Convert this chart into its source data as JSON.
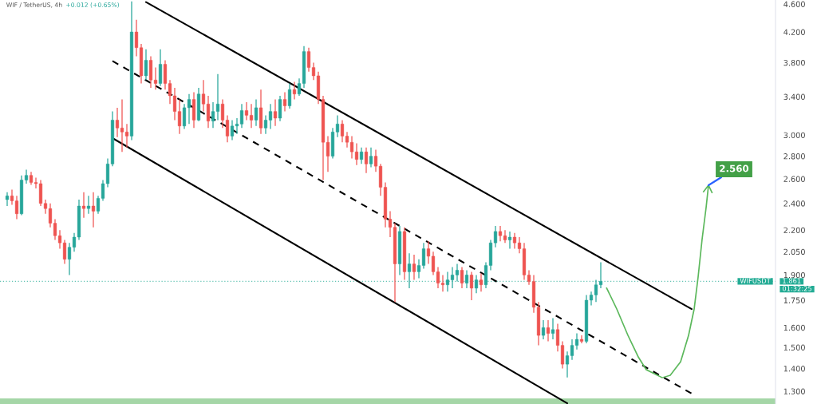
{
  "chart_data": {
    "type": "candlestick",
    "title": "WIF / TetherUS, 4h",
    "subtitle": "+0.012 (+0.65%)",
    "categories": [
      null,
      null,
      null,
      null,
      null,
      null,
      null,
      null,
      null,
      null,
      null,
      null,
      null,
      null,
      null,
      null,
      null,
      null,
      null,
      null,
      null,
      null,
      null,
      null,
      null,
      null,
      null,
      null,
      null,
      null,
      null,
      null,
      null,
      null,
      null,
      null,
      null,
      null,
      null,
      null,
      null,
      null,
      null,
      null,
      null,
      null,
      null,
      null,
      null,
      null,
      null,
      null,
      null,
      null,
      null,
      null,
      null,
      null,
      null,
      null,
      null,
      null,
      null,
      null,
      null,
      null,
      null,
      null,
      null,
      null,
      null,
      null,
      null,
      null,
      null,
      null,
      null,
      null,
      null,
      null,
      null,
      null,
      null,
      null,
      null,
      null,
      null,
      null,
      null,
      null,
      null,
      null,
      null,
      null,
      null,
      null,
      null,
      null,
      null,
      null,
      null,
      null,
      null,
      null,
      null,
      null,
      null,
      null,
      null,
      null,
      null,
      null,
      null,
      null,
      null,
      null,
      null,
      null,
      null,
      null,
      null,
      null,
      null,
      null,
      null,
      null,
      null,
      null,
      null,
      null,
      null,
      null,
      null,
      null,
      null,
      null,
      null,
      null,
      null,
      null,
      null,
      null,
      null,
      null,
      null,
      null,
      null,
      null,
      null,
      null,
      null,
      null,
      null,
      null,
      null,
      null,
      null,
      null,
      null,
      null,
      null,
      null
    ],
    "ohlc": [
      null,
      [
        2.43,
        2.49,
        2.38,
        2.46
      ],
      [
        2.46,
        2.51,
        2.39,
        2.42
      ],
      [
        2.42,
        2.46,
        2.28,
        2.32
      ],
      [
        2.32,
        2.63,
        2.31,
        2.59
      ],
      [
        2.59,
        2.68,
        2.56,
        2.63
      ],
      [
        2.63,
        2.66,
        2.55,
        2.57
      ],
      [
        2.57,
        2.61,
        2.52,
        2.56
      ],
      [
        2.56,
        2.59,
        2.38,
        2.4
      ],
      [
        2.4,
        2.43,
        2.32,
        2.36
      ],
      [
        2.36,
        2.4,
        2.22,
        2.25
      ],
      [
        2.25,
        2.28,
        2.13,
        2.16
      ],
      [
        2.16,
        2.2,
        2.07,
        2.11
      ],
      [
        2.11,
        2.13,
        1.97,
        2.0
      ],
      [
        2.0,
        2.11,
        1.9,
        2.08
      ],
      [
        2.08,
        2.18,
        2.05,
        2.15
      ],
      [
        2.15,
        2.43,
        2.13,
        2.38
      ],
      [
        2.38,
        2.49,
        2.29,
        2.36
      ],
      [
        2.36,
        2.46,
        2.32,
        2.38
      ],
      [
        2.38,
        2.49,
        2.22,
        2.34
      ],
      [
        2.34,
        2.46,
        2.32,
        2.44
      ],
      [
        2.44,
        2.59,
        2.42,
        2.56
      ],
      [
        2.56,
        2.78,
        2.53,
        2.73
      ],
      [
        2.73,
        3.24,
        2.71,
        3.15
      ],
      [
        3.15,
        3.28,
        2.98,
        3.07
      ],
      [
        3.07,
        3.37,
        2.84,
        3.03
      ],
      [
        3.03,
        3.11,
        2.88,
        2.99
      ],
      [
        2.99,
        4.64,
        2.95,
        4.2
      ],
      [
        4.2,
        4.37,
        3.88,
        3.99
      ],
      [
        3.99,
        4.04,
        3.55,
        3.64
      ],
      [
        3.64,
        3.97,
        3.59,
        3.83
      ],
      [
        3.83,
        3.88,
        3.5,
        3.59
      ],
      [
        3.59,
        3.74,
        3.48,
        3.55
      ],
      [
        3.55,
        3.97,
        3.52,
        3.78
      ],
      [
        3.78,
        3.83,
        3.48,
        3.55
      ],
      [
        3.55,
        3.59,
        3.32,
        3.41
      ],
      [
        3.41,
        3.5,
        3.15,
        3.24
      ],
      [
        3.24,
        3.37,
        3.01,
        3.09
      ],
      [
        3.09,
        3.32,
        3.06,
        3.28
      ],
      [
        3.28,
        3.43,
        3.11,
        3.37
      ],
      [
        3.37,
        3.45,
        3.07,
        3.15
      ],
      [
        3.15,
        3.5,
        3.14,
        3.43
      ],
      [
        3.43,
        3.59,
        3.24,
        3.32
      ],
      [
        3.32,
        3.41,
        3.07,
        3.14
      ],
      [
        3.14,
        3.34,
        3.07,
        3.24
      ],
      [
        3.24,
        3.66,
        3.15,
        3.32
      ],
      [
        3.32,
        3.37,
        3.07,
        3.15
      ],
      [
        3.15,
        3.2,
        2.93,
        2.99
      ],
      [
        2.99,
        3.15,
        2.95,
        3.09
      ],
      [
        3.09,
        3.17,
        3.01,
        3.11
      ],
      [
        3.11,
        3.32,
        3.07,
        3.25
      ],
      [
        3.25,
        3.34,
        3.15,
        3.2
      ],
      [
        3.2,
        3.32,
        3.07,
        3.15
      ],
      [
        3.15,
        3.37,
        3.09,
        3.28
      ],
      [
        3.28,
        3.48,
        3.01,
        3.07
      ],
      [
        3.07,
        3.2,
        3.01,
        3.15
      ],
      [
        3.15,
        3.32,
        3.06,
        3.24
      ],
      [
        3.24,
        3.37,
        3.09,
        3.17
      ],
      [
        3.17,
        3.41,
        3.14,
        3.37
      ],
      [
        3.37,
        3.45,
        3.24,
        3.3
      ],
      [
        3.3,
        3.55,
        3.27,
        3.48
      ],
      [
        3.48,
        3.57,
        3.37,
        3.43
      ],
      [
        3.43,
        3.61,
        3.41,
        3.55
      ],
      [
        3.55,
        4.01,
        3.5,
        3.94
      ],
      [
        3.94,
        3.99,
        3.69,
        3.74
      ],
      [
        3.74,
        3.8,
        3.59,
        3.64
      ],
      [
        3.64,
        3.69,
        3.32,
        3.37
      ],
      [
        3.37,
        3.41,
        2.59,
        2.93
      ],
      [
        2.93,
        2.99,
        2.66,
        2.8
      ],
      [
        2.8,
        3.07,
        2.78,
        3.03
      ],
      [
        3.03,
        3.2,
        2.98,
        3.11
      ],
      [
        3.11,
        3.15,
        2.93,
        2.99
      ],
      [
        2.99,
        3.03,
        2.88,
        2.93
      ],
      [
        2.93,
        2.99,
        2.78,
        2.84
      ],
      [
        2.84,
        2.92,
        2.72,
        2.77
      ],
      [
        2.77,
        2.88,
        2.73,
        2.84
      ],
      [
        2.84,
        2.88,
        2.65,
        2.73
      ],
      [
        2.73,
        2.88,
        2.7,
        2.8
      ],
      [
        2.8,
        2.86,
        2.66,
        2.71
      ],
      [
        2.71,
        2.73,
        2.46,
        2.53
      ],
      [
        2.53,
        2.57,
        2.22,
        2.28
      ],
      [
        2.28,
        2.34,
        2.15,
        2.22
      ],
      [
        2.22,
        2.25,
        1.74,
        1.97
      ],
      [
        1.97,
        2.23,
        1.9,
        2.19
      ],
      [
        2.19,
        2.22,
        1.87,
        1.92
      ],
      [
        1.92,
        2.04,
        1.82,
        1.97
      ],
      [
        1.97,
        2.03,
        1.87,
        1.92
      ],
      [
        1.92,
        2.0,
        1.88,
        1.96
      ],
      [
        1.96,
        2.11,
        1.94,
        2.07
      ],
      [
        2.07,
        2.12,
        1.97,
        2.02
      ],
      [
        2.02,
        2.05,
        1.9,
        1.92
      ],
      [
        1.92,
        1.95,
        1.82,
        1.85
      ],
      [
        1.85,
        1.9,
        1.8,
        1.84
      ],
      [
        1.84,
        1.92,
        1.8,
        1.87
      ],
      [
        1.87,
        1.95,
        1.82,
        1.9
      ],
      [
        1.9,
        1.97,
        1.86,
        1.93
      ],
      [
        1.93,
        1.95,
        1.82,
        1.85
      ],
      [
        1.85,
        1.93,
        1.82,
        1.9
      ],
      [
        1.9,
        1.92,
        1.75,
        1.82
      ],
      [
        1.82,
        1.9,
        1.79,
        1.87
      ],
      [
        1.87,
        1.91,
        1.8,
        1.84
      ],
      [
        1.84,
        1.98,
        1.82,
        1.96
      ],
      [
        1.96,
        2.13,
        1.93,
        2.11
      ],
      [
        2.11,
        2.23,
        2.08,
        2.19
      ],
      [
        2.19,
        2.23,
        2.12,
        2.16
      ],
      [
        2.16,
        2.2,
        2.11,
        2.13
      ],
      [
        2.13,
        2.19,
        2.07,
        2.15
      ],
      [
        2.15,
        2.18,
        2.07,
        2.11
      ],
      [
        2.11,
        2.15,
        2.04,
        2.07
      ],
      [
        2.07,
        2.11,
        1.87,
        1.9
      ],
      [
        1.9,
        1.93,
        1.84,
        1.86
      ],
      [
        1.86,
        1.9,
        1.68,
        1.71
      ],
      [
        1.71,
        1.74,
        1.51,
        1.56
      ],
      [
        1.56,
        1.64,
        1.54,
        1.6
      ],
      [
        1.6,
        1.64,
        1.53,
        1.57
      ],
      [
        1.57,
        1.65,
        1.54,
        1.59
      ],
      [
        1.59,
        1.62,
        1.48,
        1.51
      ],
      [
        1.51,
        1.53,
        1.4,
        1.42
      ],
      [
        1.42,
        1.48,
        1.36,
        1.46
      ],
      [
        1.46,
        1.54,
        1.44,
        1.51
      ],
      [
        1.51,
        1.57,
        1.49,
        1.54
      ],
      [
        1.54,
        1.56,
        1.52,
        1.53
      ],
      [
        1.53,
        1.78,
        1.52,
        1.75
      ],
      [
        1.75,
        1.8,
        1.72,
        1.78
      ],
      [
        1.78,
        1.87,
        1.74,
        1.84
      ],
      [
        1.84,
        1.98,
        1.82,
        1.861
      ],
      null,
      null,
      null,
      null,
      null,
      null,
      null,
      null,
      null,
      null,
      null,
      null,
      null,
      null,
      null,
      null,
      null,
      null,
      null,
      null,
      null,
      null,
      null,
      null,
      null,
      null,
      null,
      null,
      null,
      null,
      null,
      null,
      null,
      null,
      null,
      null
    ],
    "colors": [
      null,
      "#26a69a",
      "#ef5350",
      "#ef5350",
      "#26a69a",
      "#26a69a",
      "#ef5350",
      "#ef5350",
      "#ef5350",
      "#ef5350",
      "#ef5350",
      "#ef5350",
      "#ef5350",
      "#ef5350",
      "#26a69a",
      "#26a69a",
      "#26a69a",
      "#ef5350",
      "#26a69a",
      "#ef5350",
      "#26a69a",
      "#26a69a",
      "#26a69a",
      "#26a69a",
      "#ef5350",
      "#ef5350",
      "#ef5350",
      "#26a69a",
      "#ef5350",
      "#ef5350",
      "#26a69a",
      "#ef5350",
      "#ef5350",
      "#26a69a",
      "#ef5350",
      "#ef5350",
      "#ef5350",
      "#ef5350",
      "#26a69a",
      "#26a69a",
      "#ef5350",
      "#26a69a",
      "#ef5350",
      "#ef5350",
      "#26a69a",
      "#26a69a",
      "#ef5350",
      "#ef5350",
      "#26a69a",
      "#26a69a",
      "#26a69a",
      "#ef5350",
      "#ef5350",
      "#26a69a",
      "#ef5350",
      "#26a69a",
      "#26a69a",
      "#ef5350",
      "#26a69a",
      "#ef5350",
      "#26a69a",
      "#ef5350",
      "#26a69a",
      "#26a69a",
      "#ef5350",
      "#ef5350",
      "#ef5350",
      "#ef5350",
      "#ef5350",
      "#26a69a",
      "#26a69a",
      "#ef5350",
      "#ef5350",
      "#ef5350",
      "#ef5350",
      "#26a69a",
      "#ef5350",
      "#26a69a",
      "#ef5350",
      "#ef5350",
      "#ef5350",
      "#ef5350",
      "#ef5350",
      "#26a69a",
      "#ef5350",
      "#26a69a",
      "#ef5350",
      "#26a69a",
      "#26a69a",
      "#ef5350",
      "#ef5350",
      "#ef5350",
      "#ef5350",
      "#26a69a",
      "#26a69a",
      "#26a69a",
      "#ef5350",
      "#26a69a",
      "#ef5350",
      "#26a69a",
      "#ef5350",
      "#26a69a",
      "#26a69a",
      "#26a69a",
      "#ef5350",
      "#ef5350",
      "#26a69a",
      "#ef5350",
      "#ef5350",
      "#ef5350",
      "#ef5350",
      "#ef5350",
      "#ef5350",
      "#26a69a",
      "#ef5350",
      "#26a69a",
      "#ef5350",
      "#ef5350",
      "#26a69a",
      "#26a69a",
      "#26a69a",
      "#ef5350",
      "#26a69a",
      "#26a69a",
      "#26a69a",
      "#26a69a",
      null,
      null,
      null,
      null,
      null,
      null,
      null,
      null,
      null,
      null,
      null,
      null,
      null,
      null,
      null,
      null,
      null,
      null,
      null,
      null,
      null,
      null,
      null,
      null,
      null,
      null,
      null,
      null,
      null,
      null,
      null,
      null,
      null,
      null,
      null,
      null
    ],
    "series": [
      {
        "type": "line",
        "color": "#000000",
        "values": [
          null,
          null,
          null,
          null,
          null,
          null,
          null,
          null,
          null,
          null,
          null,
          null,
          null,
          null,
          null,
          null,
          null,
          null,
          null,
          null,
          null,
          null,
          null,
          null,
          null,
          null,
          null,
          null,
          null,
          null,
          4.63,
          null,
          null,
          null,
          null,
          null,
          null,
          null,
          null,
          null,
          null,
          null,
          null,
          null,
          null,
          null,
          null,
          null,
          null,
          null,
          null,
          null,
          null,
          null,
          null,
          null,
          null,
          null,
          null,
          null,
          null,
          null,
          null,
          null,
          null,
          null,
          null,
          null,
          null,
          null,
          null,
          null,
          null,
          null,
          null,
          null,
          null,
          null,
          null,
          null,
          null,
          null,
          null,
          null,
          null,
          null,
          null,
          null,
          null,
          null,
          null,
          null,
          null,
          null,
          null,
          null,
          null,
          null,
          null,
          null,
          null,
          null,
          null,
          null,
          null,
          null,
          null,
          null,
          null,
          null,
          null,
          null,
          null,
          null,
          null,
          null,
          null,
          null,
          null,
          null,
          null,
          null,
          null,
          null,
          null,
          null,
          null,
          null,
          null,
          null,
          null,
          null,
          null,
          null,
          null,
          null,
          null,
          null,
          null,
          null,
          null,
          null,
          null,
          null,
          1.7,
          null,
          null,
          null,
          null,
          null,
          null,
          null,
          null,
          null,
          null,
          null,
          null,
          null,
          null,
          null,
          null,
          null
        ]
      },
      {
        "type": "line",
        "color": "#000000",
        "values": [
          null,
          null,
          null,
          null,
          null,
          null,
          null,
          null,
          null,
          null,
          null,
          null,
          null,
          null,
          null,
          null,
          null,
          null,
          null,
          null,
          null,
          null,
          null,
          2.97,
          null,
          null,
          null,
          null,
          null,
          null,
          null,
          null,
          null,
          null,
          null,
          null,
          null,
          null,
          null,
          null,
          null,
          null,
          null,
          null,
          null,
          null,
          null,
          null,
          null,
          null,
          null,
          null,
          null,
          null,
          null,
          null,
          null,
          null,
          null,
          null,
          null,
          null,
          null,
          null,
          null,
          null,
          null,
          null,
          null,
          null,
          null,
          null,
          null,
          null,
          null,
          null,
          null,
          null,
          null,
          null,
          null,
          null,
          null,
          null,
          null,
          null,
          null,
          null,
          null,
          null,
          null,
          null,
          null,
          null,
          null,
          null,
          null,
          null,
          null,
          null,
          null,
          null,
          null,
          null,
          null,
          null,
          null,
          null,
          null,
          null,
          null,
          null,
          null,
          null,
          null,
          null,
          null,
          null,
          1.25,
          null,
          null,
          null,
          null,
          null,
          null,
          null,
          null,
          null,
          null,
          null,
          null,
          null,
          null,
          null,
          null,
          null,
          null,
          null,
          null,
          null,
          null,
          null,
          null,
          null,
          null,
          null,
          null,
          null,
          null,
          null,
          null,
          null,
          null,
          null,
          null,
          null,
          null,
          null,
          null,
          null,
          null,
          null
        ]
      },
      {
        "type": "line",
        "color": "#000000",
        "line_style": "dashed",
        "values": [
          null,
          null,
          null,
          null,
          null,
          null,
          null,
          null,
          null,
          null,
          null,
          null,
          null,
          null,
          null,
          null,
          null,
          null,
          null,
          null,
          null,
          null,
          null,
          3.82,
          null,
          null,
          null,
          null,
          null,
          null,
          null,
          null,
          null,
          null,
          null,
          null,
          null,
          null,
          null,
          null,
          null,
          null,
          null,
          null,
          null,
          null,
          null,
          null,
          null,
          null,
          null,
          null,
          null,
          null,
          null,
          null,
          null,
          null,
          null,
          null,
          null,
          null,
          null,
          null,
          null,
          null,
          null,
          null,
          null,
          null,
          null,
          null,
          null,
          null,
          null,
          null,
          null,
          null,
          null,
          null,
          null,
          null,
          null,
          null,
          null,
          null,
          null,
          null,
          null,
          null,
          null,
          null,
          null,
          null,
          null,
          null,
          null,
          null,
          null,
          null,
          null,
          null,
          null,
          null,
          null,
          null,
          null,
          null,
          null,
          null,
          null,
          null,
          null,
          null,
          null,
          null,
          null,
          null,
          null,
          null,
          null,
          null,
          null,
          null,
          null,
          null,
          null,
          null,
          null,
          null,
          null,
          null,
          null,
          null,
          null,
          null,
          null,
          null,
          null,
          null,
          null,
          null,
          null,
          null,
          1.29,
          null,
          null,
          null,
          null,
          null,
          null,
          null,
          null,
          null,
          null,
          null,
          null,
          null,
          null,
          null,
          null,
          null
        ]
      }
    ],
    "ylim": [
      1.247,
      4.662
    ],
    "yticks": [
      {
        "value": 4.6,
        "label": "4.600"
      },
      {
        "value": 4.2,
        "label": "4.200"
      },
      {
        "value": 3.8,
        "label": "3.800"
      },
      {
        "value": 3.4,
        "label": "3.400"
      },
      {
        "value": 3.0,
        "label": "3.000"
      },
      {
        "value": 2.8,
        "label": "2.800"
      },
      {
        "value": 2.6,
        "label": "2.600"
      },
      {
        "value": 2.4,
        "label": "2.400"
      },
      {
        "value": 2.2,
        "label": "2.200"
      },
      {
        "value": 2.05,
        "label": "2.050"
      },
      {
        "value": 1.9,
        "label": "1.900"
      },
      {
        "value": 1.75,
        "label": "1.750"
      },
      {
        "value": 1.6,
        "label": "1.600"
      },
      {
        "value": 1.5,
        "label": "1.500"
      },
      {
        "value": 1.4,
        "label": "1.400"
      },
      {
        "value": 1.3,
        "label": "1.300"
      }
    ],
    "log": true,
    "ref_lines": [
      {
        "axis": "y",
        "value": 1.861,
        "label": "1.861",
        "color": "#22ab94",
        "line_style": "dotted"
      }
    ],
    "bands": [
      {
        "axis": "y",
        "from": 1.247,
        "to": 1.27,
        "color": "#a5d6a7"
      }
    ],
    "annotations": [
      {
        "text": "WIFUSDT",
        "y": 1.861
      },
      "01:32:25",
      "2.560"
    ],
    "grid": false,
    "tick_labels": "y"
  }
}
